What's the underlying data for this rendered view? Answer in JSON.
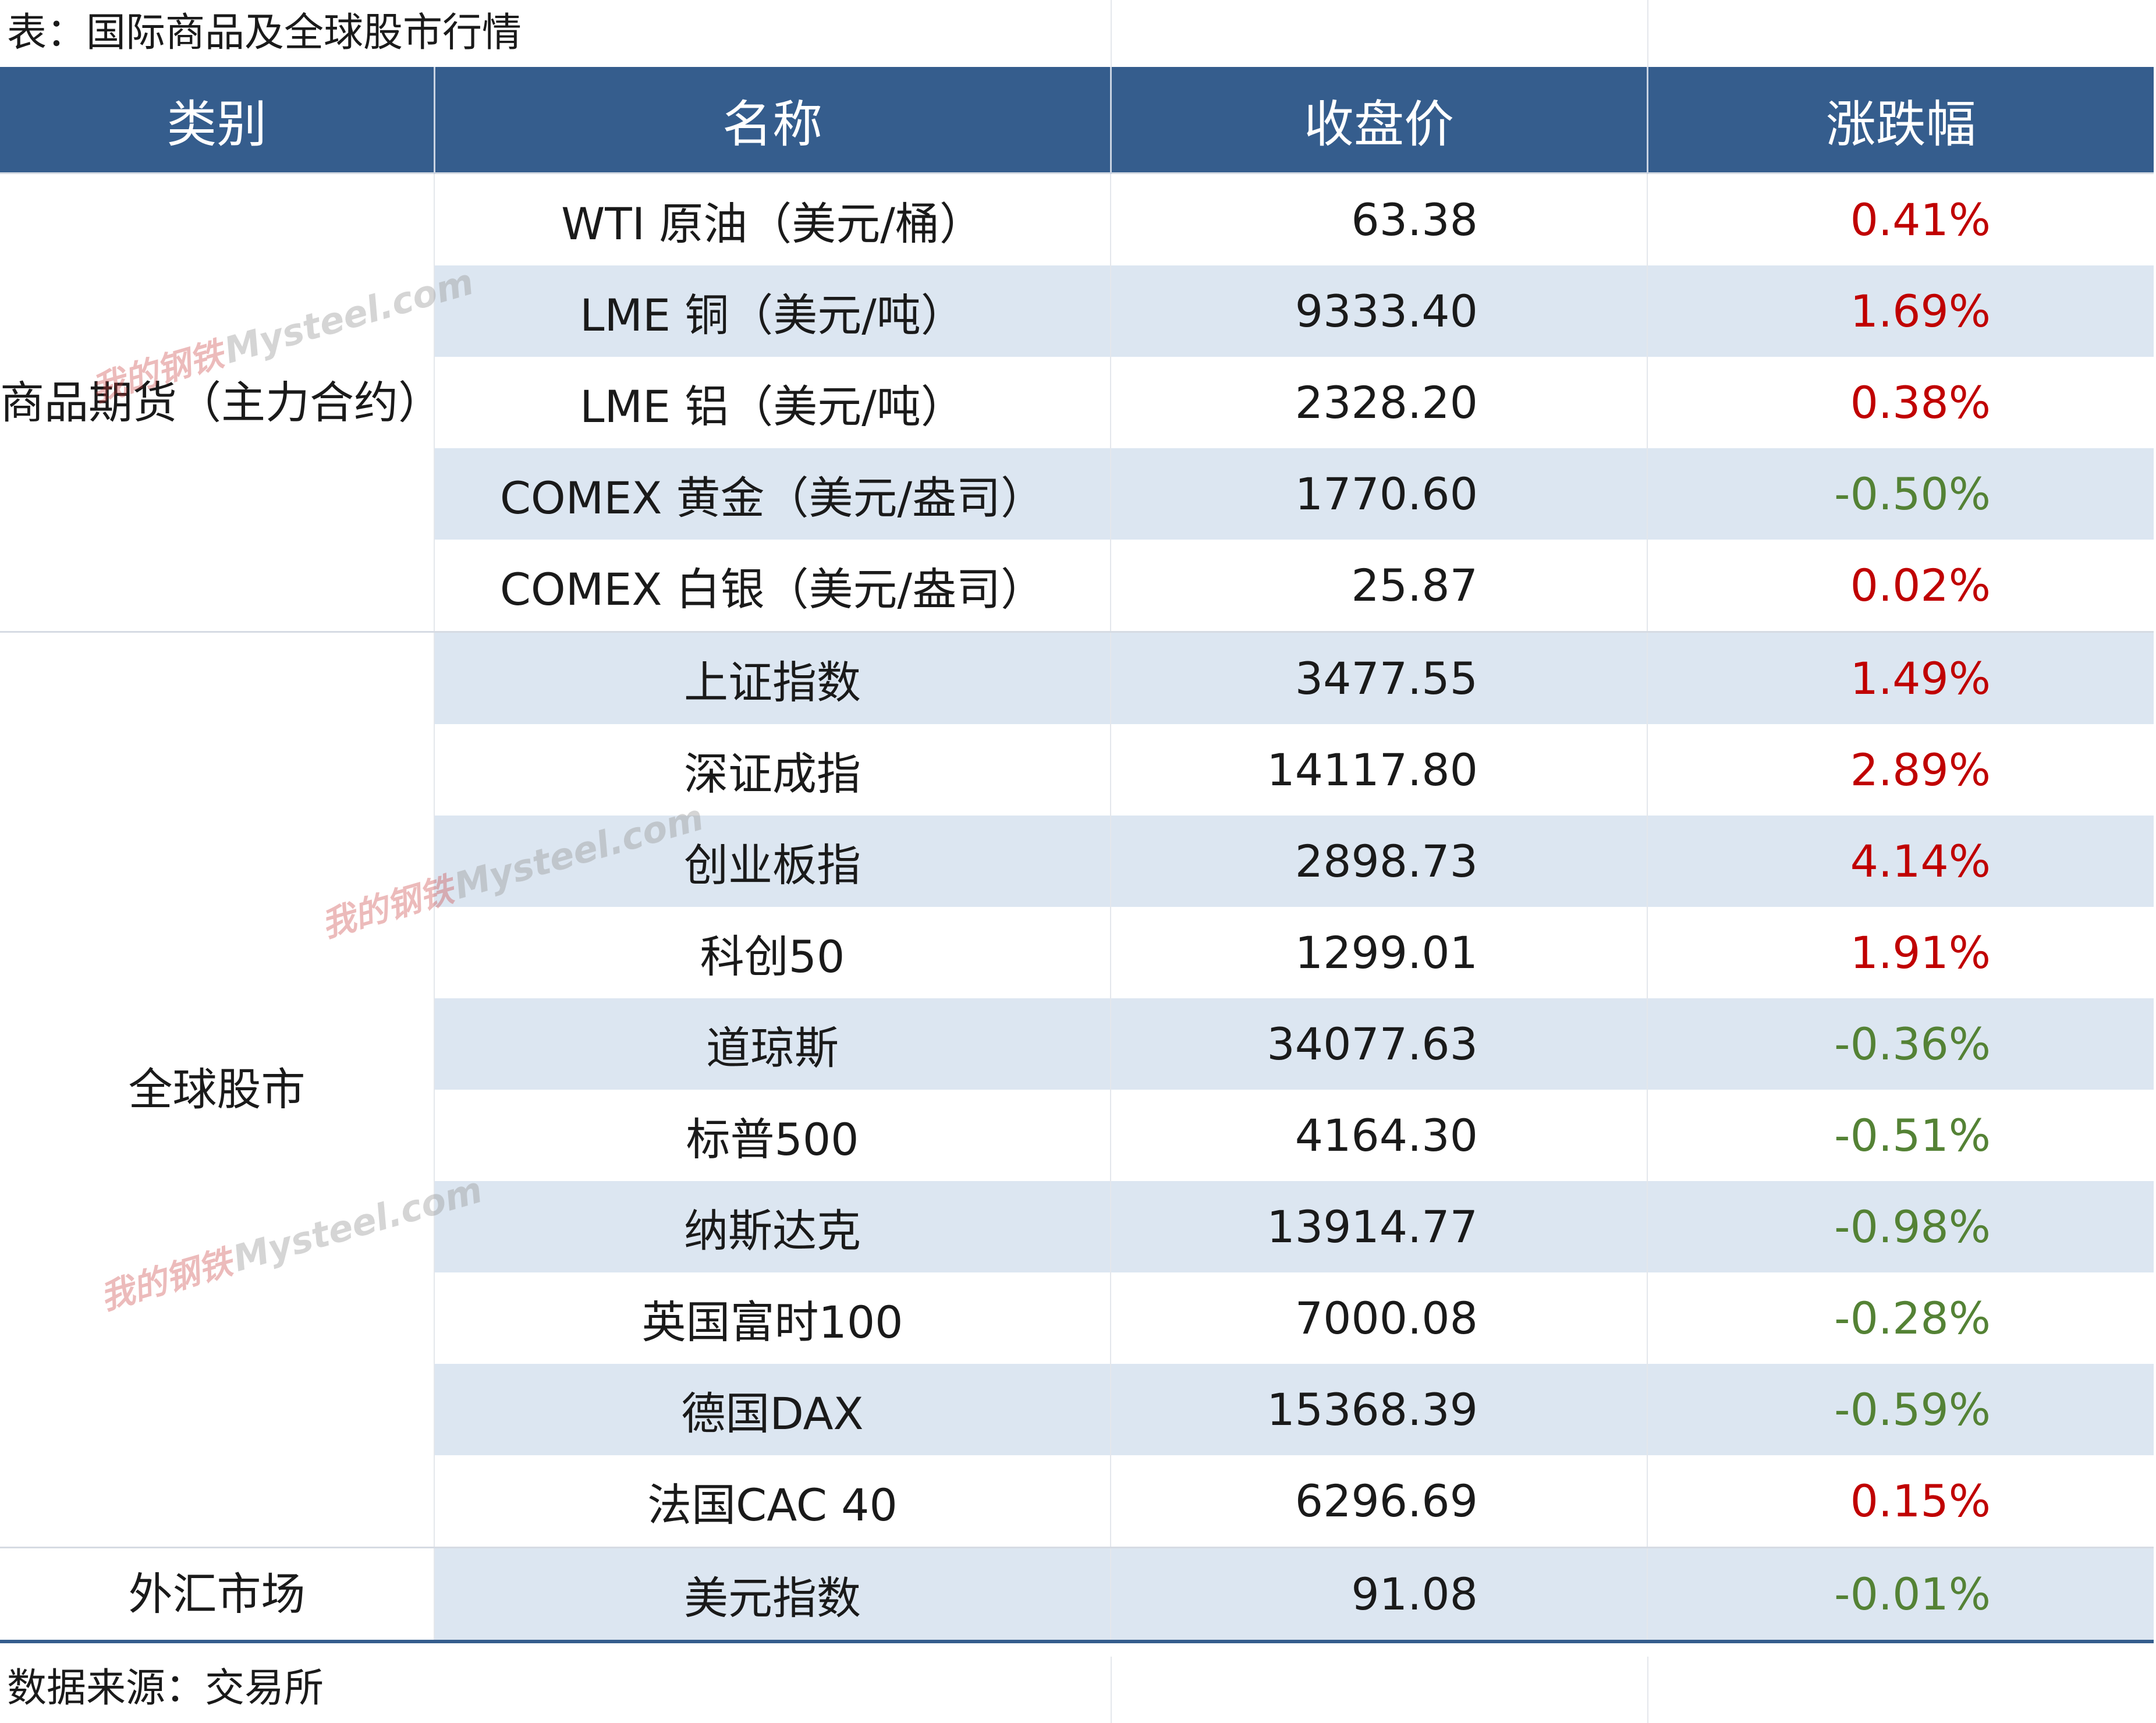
{
  "title": "表：国际商品及全球股市行情",
  "source": "数据来源：交易所",
  "colors": {
    "header_bg": "#355d8d",
    "band": "#dce6f1",
    "up": "#c00000",
    "down": "#548235"
  },
  "headers": [
    "类别",
    "名称",
    "收盘价",
    "涨跌幅"
  ],
  "watermark": {
    "cn": "我的钢铁",
    "en": "Mysteel.com"
  },
  "groups": [
    {
      "category": "商品期货（主力合约）",
      "rows": [
        {
          "name": "WTI 原油（美元/桶）",
          "close": "63.38",
          "change": "0.41%",
          "dir": "up"
        },
        {
          "name": "LME 铜（美元/吨）",
          "close": "9333.40",
          "change": "1.69%",
          "dir": "up"
        },
        {
          "name": "LME 铝（美元/吨）",
          "close": "2328.20",
          "change": "0.38%",
          "dir": "up"
        },
        {
          "name": "COMEX 黄金（美元/盎司）",
          "close": "1770.60",
          "change": "-0.50%",
          "dir": "down"
        },
        {
          "name": "COMEX 白银（美元/盎司）",
          "close": "25.87",
          "change": "0.02%",
          "dir": "up"
        }
      ]
    },
    {
      "category": "全球股市",
      "rows": [
        {
          "name": "上证指数",
          "close": "3477.55",
          "change": "1.49%",
          "dir": "up"
        },
        {
          "name": "深证成指",
          "close": "14117.80",
          "change": "2.89%",
          "dir": "up"
        },
        {
          "name": "创业板指",
          "close": "2898.73",
          "change": "4.14%",
          "dir": "up"
        },
        {
          "name": "科创50",
          "close": "1299.01",
          "change": "1.91%",
          "dir": "up"
        },
        {
          "name": "道琼斯",
          "close": "34077.63",
          "change": "-0.36%",
          "dir": "down"
        },
        {
          "name": "标普500",
          "close": "4164.30",
          "change": "-0.51%",
          "dir": "down"
        },
        {
          "name": "纳斯达克",
          "close": "13914.77",
          "change": "-0.98%",
          "dir": "down"
        },
        {
          "name": "英国富时100",
          "close": "7000.08",
          "change": "-0.28%",
          "dir": "down"
        },
        {
          "name": "德国DAX",
          "close": "15368.39",
          "change": "-0.59%",
          "dir": "down"
        },
        {
          "name": "法国CAC 40",
          "close": "6296.69",
          "change": "0.15%",
          "dir": "up"
        }
      ]
    },
    {
      "category": "外汇市场",
      "rows": [
        {
          "name": "美元指数",
          "close": "91.08",
          "change": "-0.01%",
          "dir": "down"
        }
      ]
    }
  ]
}
